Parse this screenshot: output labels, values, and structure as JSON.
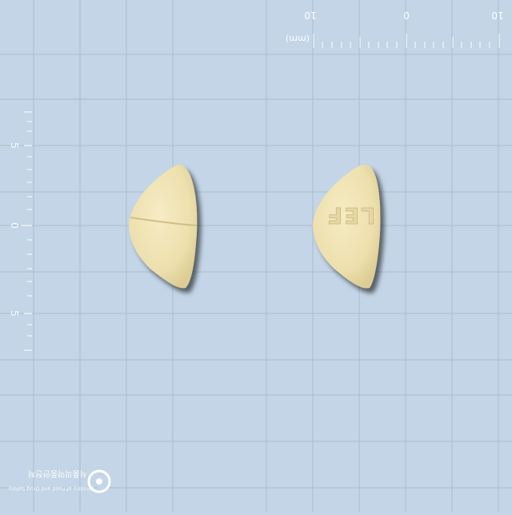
{
  "ruler_top": {
    "unit_label": "(mm)",
    "tick_labels": [
      "10",
      "0",
      "10"
    ]
  },
  "ruler_left": {
    "tick_labels": [
      "5",
      "0",
      "5"
    ]
  },
  "tablets": [
    {
      "side": "front",
      "marking": "",
      "score_line": true,
      "color": "#eee2b2"
    },
    {
      "side": "back",
      "marking": "LEF",
      "score_line": false,
      "color": "#eee2b2"
    }
  ],
  "watermark": {
    "korean": "식품의약품안전처",
    "english": "Ministry of Food and Drug Safety"
  },
  "colors": {
    "background": "#c3d5e6",
    "grid": "#a9bdd1",
    "tablet": "#eee2b2",
    "text": "#ffffff"
  }
}
